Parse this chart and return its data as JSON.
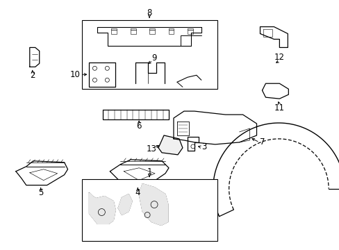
{
  "background_color": "#ffffff",
  "line_color": "#000000",
  "fig_width": 4.89,
  "fig_height": 3.6,
  "dpi": 100,
  "text_fontsize": 8.5
}
